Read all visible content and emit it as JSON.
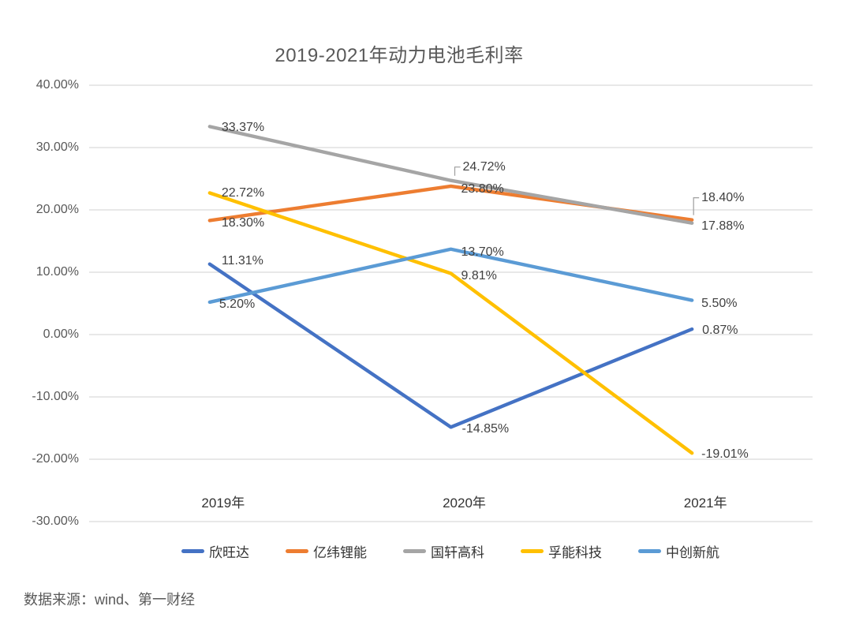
{
  "title": "2019-2021年动力电池毛利率",
  "source_note": "数据来源：wind、第一财经",
  "chart_data": {
    "type": "line",
    "title": "2019-2021年动力电池毛利率",
    "categories": [
      "2019年",
      "2020年",
      "2021年"
    ],
    "series": [
      {
        "name": "欣旺达",
        "color": "#4472C4",
        "values": [
          11.31,
          -14.85,
          0.87
        ],
        "point_labels": [
          "11.31%",
          "-14.85%",
          "0.87%"
        ]
      },
      {
        "name": "亿纬锂能",
        "color": "#ED7D31",
        "values": [
          18.3,
          23.8,
          18.4
        ],
        "point_labels": [
          "18.30%",
          "23.80%",
          "18.40%"
        ]
      },
      {
        "name": "国轩高科",
        "color": "#A5A5A5",
        "values": [
          33.37,
          24.72,
          17.88
        ],
        "point_labels": [
          "33.37%",
          "24.72%",
          "17.88%"
        ]
      },
      {
        "name": "孚能科技",
        "color": "#FFC000",
        "values": [
          22.72,
          9.81,
          -19.01
        ],
        "point_labels": [
          "22.72%",
          "9.81%",
          "-19.01%"
        ]
      },
      {
        "name": "中创新航",
        "color": "#5B9BD5",
        "values": [
          5.2,
          13.7,
          5.5
        ],
        "point_labels": [
          "5.20%",
          "13.70%",
          "5.50%"
        ]
      }
    ],
    "y_axis": {
      "ticks": [
        "40.00%",
        "30.00%",
        "20.00%",
        "10.00%",
        "0.00%",
        "-10.00%",
        "-20.00%",
        "-30.00%"
      ],
      "tick_values": [
        40,
        30,
        20,
        10,
        0,
        -10,
        -20,
        -30
      ],
      "min": -30,
      "max": 40
    },
    "grid": true,
    "legend_position": "bottom"
  },
  "colors": {
    "grid": "#D9D9D9",
    "title_text": "#595959",
    "axis_text": "#595959",
    "data_label_text": "#404040",
    "category_text": "#333333",
    "callout": "#9E9E9E",
    "background": "#FFFFFF"
  }
}
